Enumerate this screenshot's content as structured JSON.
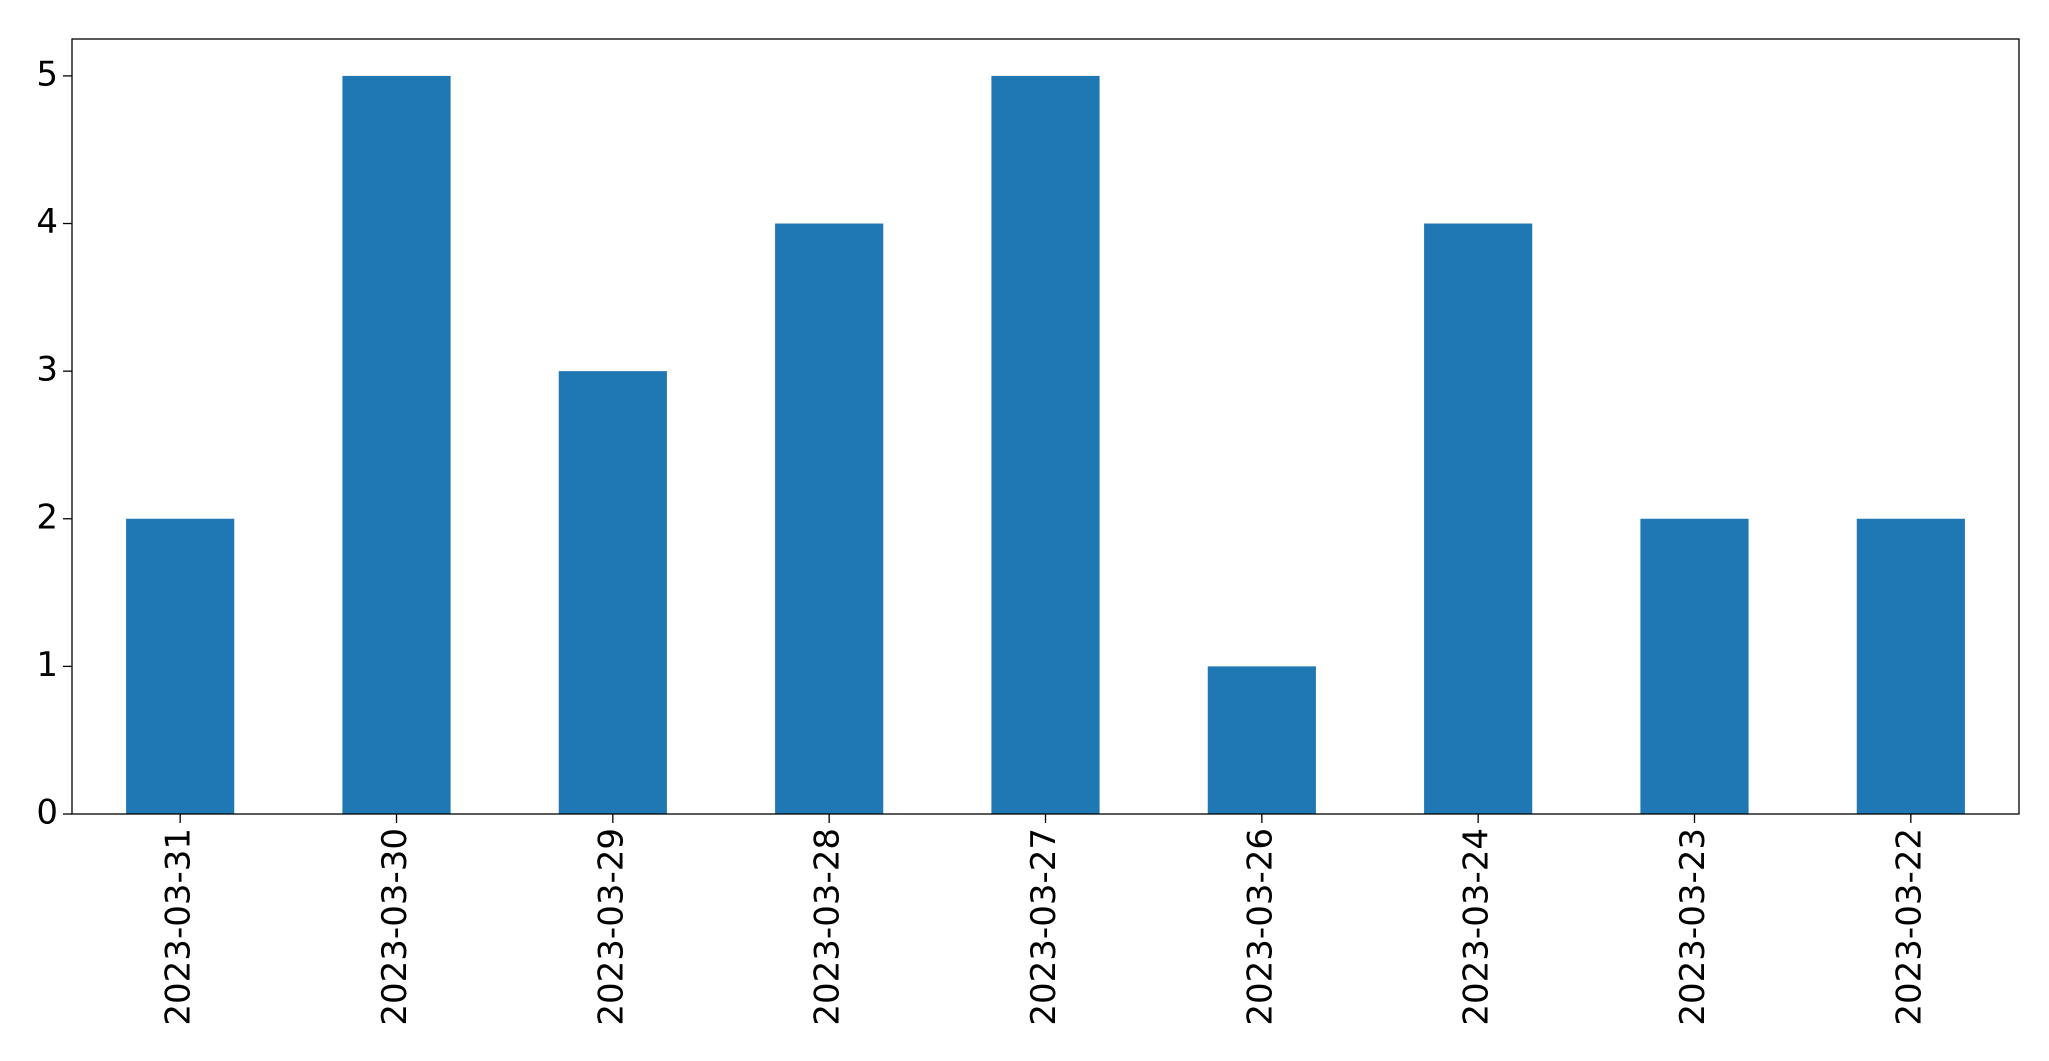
{
  "chart_data": {
    "type": "bar",
    "categories": [
      "2023-03-31",
      "2023-03-30",
      "2023-03-29",
      "2023-03-28",
      "2023-03-27",
      "2023-03-26",
      "2023-03-24",
      "2023-03-23",
      "2023-03-22"
    ],
    "values": [
      2,
      5,
      3,
      4,
      5,
      1,
      4,
      2,
      2
    ],
    "color": "#1f77b4",
    "ylim": [
      0,
      5.25
    ],
    "yticks": [
      0,
      1,
      2,
      3,
      4,
      5
    ],
    "grid": false
  }
}
